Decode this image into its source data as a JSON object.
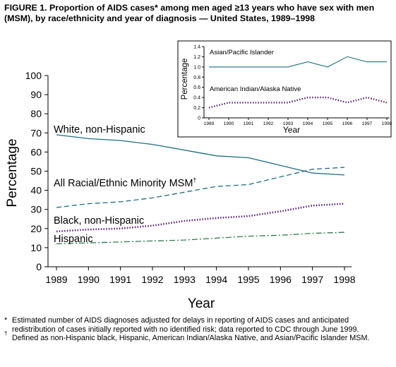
{
  "title": "FIGURE 1. Proportion of AIDS cases* among men aged ≥13 years who have sex with men (MSM), by race/ethnicity and year of diagnosis — United States, 1989–1998",
  "footnotes": [
    {
      "mark": "*",
      "text": "Estimated number of AIDS diagnoses adjusted for delays in reporting of AIDS cases and anticipated redistribution of cases initially reported with no identified risk; data reported to CDC through June 1999."
    },
    {
      "mark": "†",
      "text": "Defined as non-Hispanic black, Hispanic, American Indian/Alaska Native, and Asian/Pacific Islander MSM."
    }
  ],
  "colors": {
    "teal": "#1e6f80",
    "purple": "#5b1e7a",
    "green": "#2f7a52"
  },
  "chart_data": [
    {
      "type": "line",
      "xlabel": "Year",
      "ylabel": "Percentage",
      "x": [
        "1989",
        "1990",
        "1991",
        "1992",
        "1993",
        "1994",
        "1995",
        "1996",
        "1997",
        "1998"
      ],
      "ylim": [
        0,
        100
      ],
      "yticks": [
        0,
        10,
        20,
        30,
        40,
        50,
        60,
        70,
        80,
        90,
        100
      ],
      "grid": false,
      "series": [
        {
          "name": "White, non-Hispanic",
          "style": "solid",
          "color": "#1e6f80",
          "values": [
            69,
            67,
            66,
            64,
            61,
            58,
            57,
            53,
            49,
            48
          ]
        },
        {
          "name": "All Racial/Ethnic Minority MSM",
          "name_mark": "†",
          "style": "dashed",
          "color": "#1e6f80",
          "values": [
            31,
            33,
            34,
            36,
            39,
            42,
            43,
            47,
            51,
            52
          ]
        },
        {
          "name": "Black, non-Hispanic",
          "style": "dotted",
          "color": "#5b1e7a",
          "values": [
            18.5,
            19.5,
            20,
            21.5,
            24,
            25.5,
            26.5,
            29,
            32,
            33
          ]
        },
        {
          "name": "Hispanic",
          "style": "dashdot",
          "color": "#2f7a52",
          "values": [
            12,
            12.5,
            13,
            13.5,
            14,
            15,
            16,
            16.5,
            17.5,
            18
          ]
        }
      ]
    },
    {
      "type": "line",
      "xlabel": "Year",
      "ylabel": "Percentage",
      "x": [
        "1989",
        "1990",
        "1991",
        "1992",
        "1993",
        "1994",
        "1995",
        "1996",
        "1997",
        "1998"
      ],
      "ylim": [
        0,
        1.4
      ],
      "yticks": [
        "0",
        "0.2",
        "0.4",
        "0.6",
        "0.8",
        "1.0",
        "1.2",
        "1.4"
      ],
      "grid": false,
      "series": [
        {
          "name": "Asian/Pacific Islander",
          "style": "solid",
          "color": "#1e6f80",
          "values": [
            1.0,
            1.0,
            1.0,
            1.0,
            1.0,
            1.1,
            1.0,
            1.2,
            1.1,
            1.1
          ]
        },
        {
          "name": "American Indian/Alaska Native",
          "style": "dotted",
          "color": "#5b1e7a",
          "values": [
            0.2,
            0.3,
            0.3,
            0.3,
            0.3,
            0.4,
            0.4,
            0.3,
            0.4,
            0.3
          ]
        }
      ]
    }
  ]
}
